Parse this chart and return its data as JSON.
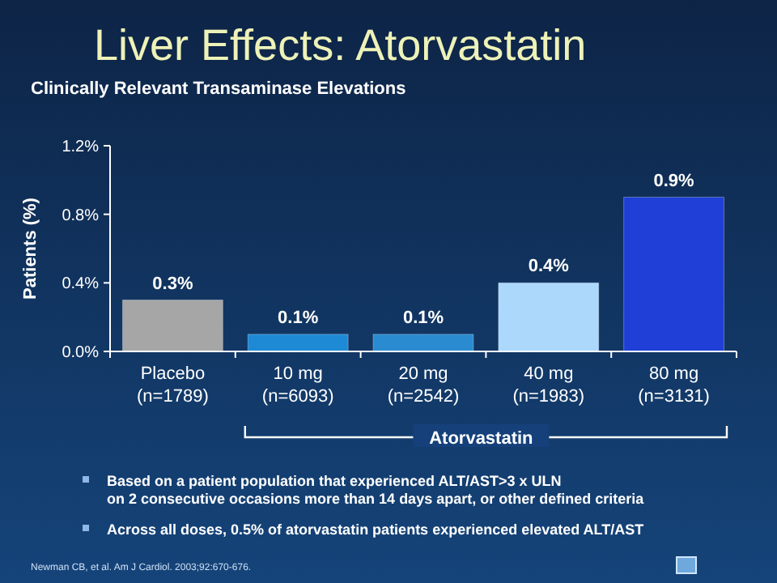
{
  "chart_data": {
    "type": "bar",
    "title": "Liver Effects: Atorvastatin",
    "subtitle": "Clinically Relevant Transaminase Elevations",
    "ylabel": "Patients (%)",
    "categories": [
      "Placebo\n(n=1789)",
      "10 mg\n(n=6093)",
      "20 mg\n(n=2542)",
      "40 mg\n(n=1983)",
      "80 mg\n(n=3131)"
    ],
    "values": [
      0.3,
      0.1,
      0.1,
      0.4,
      0.9
    ],
    "colors": [
      "#a6a6a6",
      "#1e8ad6",
      "#2a8bd0",
      "#acd8fb",
      "#1f3fd6"
    ],
    "value_labels": [
      "0.3%",
      "0.1%",
      "0.1%",
      "0.4%",
      "0.9%"
    ],
    "ylim": [
      0,
      1.2
    ],
    "yticks": [
      {
        "value": 0,
        "label": "0.0%"
      },
      {
        "value": 0.4,
        "label": "0.4%"
      },
      {
        "value": 0.8,
        "label": "0.8%"
      },
      {
        "value": 1.2,
        "label": "1.2%"
      }
    ],
    "grid": false,
    "annotations": [
      "Atorvastatin",
      "Based on a patient population that experienced ALT/AST>3 x ULN\non 2 consecutive occasions more than 14 days apart, or other defined criteria",
      "Across all doses, 0.5% of atorvastatin patients experienced elevated ALT/AST",
      "Newman CB, et al. Am J Cardiol. 2003;92:670-676."
    ]
  }
}
